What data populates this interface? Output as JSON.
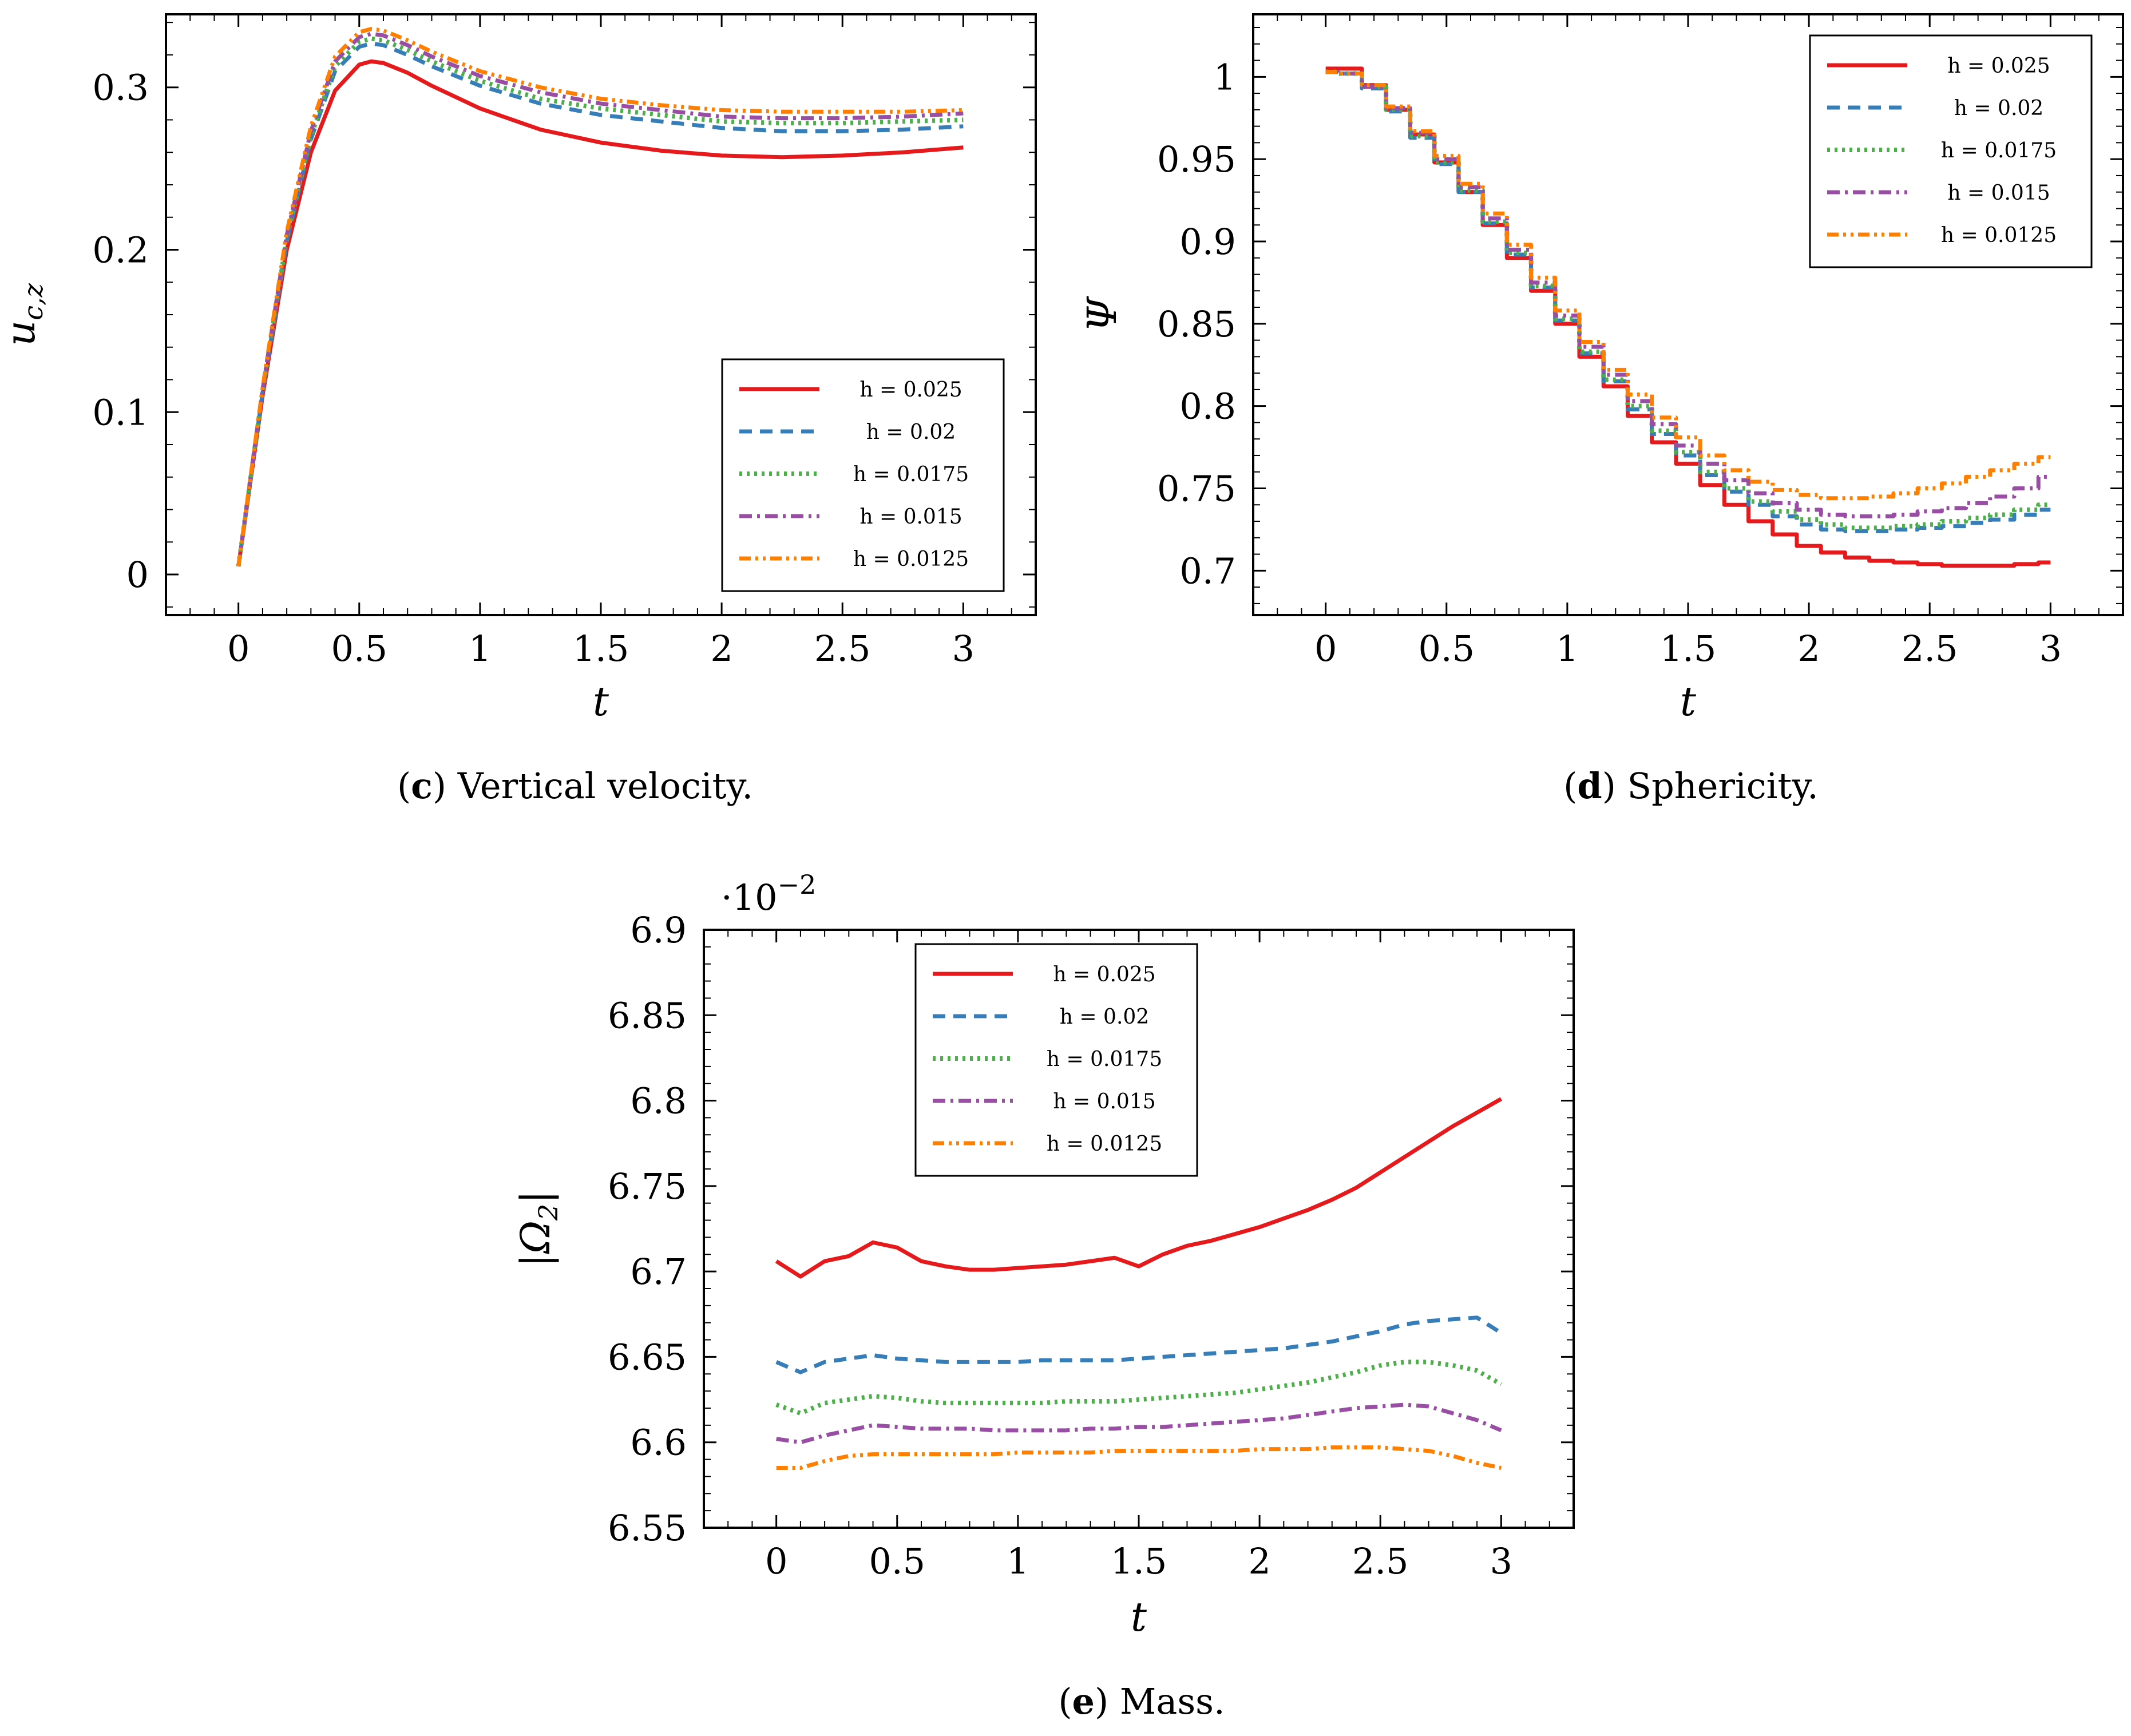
{
  "colors": {
    "h0025": "#e41a1c",
    "h002": "#377eb8",
    "h00175": "#4daf4a",
    "h0015": "#984ea3",
    "h00125": "#ff7f00"
  },
  "series_styles": [
    {
      "key": "h0025",
      "dash": "",
      "width": 7
    },
    {
      "key": "h002",
      "dash": "22 14",
      "width": 7
    },
    {
      "key": "h00175",
      "dash": "5 8",
      "width": 8
    },
    {
      "key": "h0015",
      "dash": "22 9 5 9",
      "width": 7
    },
    {
      "key": "h00125",
      "dash": "20 8 5 8 5 8",
      "width": 7
    }
  ],
  "legend_labels": [
    "h = 0.025",
    "h = 0.02",
    "h = 0.0175",
    "h = 0.015",
    "h = 0.0125"
  ],
  "chart_data": [
    {
      "id": "c",
      "type": "line",
      "title": "",
      "caption_letter": "c",
      "caption_text": "Vertical velocity.",
      "xlabel": "t",
      "ylabel": "u_{c,z}",
      "ylabel_main": "u",
      "ylabel_sub": "c,z",
      "xlim": [
        -0.3,
        3.3
      ],
      "ylim": [
        -0.025,
        0.345
      ],
      "xticks": [
        0,
        0.5,
        1,
        1.5,
        2,
        2.5,
        3
      ],
      "xtick_labels": [
        "0",
        "0.5",
        "1",
        "1.5",
        "2",
        "2.5",
        "3"
      ],
      "yticks": [
        0,
        0.1,
        0.2,
        0.3
      ],
      "ytick_labels": [
        "0",
        "0.1",
        "0.2",
        "0.3"
      ],
      "multiplier": "",
      "legend_position": "lower-right",
      "x": [
        0,
        0.1,
        0.2,
        0.3,
        0.4,
        0.5,
        0.55,
        0.6,
        0.7,
        0.8,
        1.0,
        1.25,
        1.5,
        1.75,
        2.0,
        2.25,
        2.5,
        2.75,
        3.0
      ],
      "series": [
        {
          "name": "h = 0.025",
          "values": [
            0.005,
            0.11,
            0.2,
            0.26,
            0.298,
            0.314,
            0.316,
            0.315,
            0.309,
            0.301,
            0.287,
            0.274,
            0.266,
            0.261,
            0.258,
            0.257,
            0.258,
            0.26,
            0.263
          ]
        },
        {
          "name": "h = 0.02",
          "values": [
            0.005,
            0.112,
            0.205,
            0.268,
            0.31,
            0.325,
            0.327,
            0.326,
            0.32,
            0.313,
            0.301,
            0.29,
            0.283,
            0.279,
            0.275,
            0.273,
            0.273,
            0.274,
            0.276
          ]
        },
        {
          "name": "h = 0.0175",
          "values": [
            0.005,
            0.113,
            0.207,
            0.27,
            0.313,
            0.328,
            0.33,
            0.329,
            0.323,
            0.316,
            0.304,
            0.293,
            0.287,
            0.283,
            0.279,
            0.278,
            0.278,
            0.279,
            0.28
          ]
        },
        {
          "name": "h = 0.015",
          "values": [
            0.005,
            0.114,
            0.209,
            0.273,
            0.316,
            0.331,
            0.333,
            0.332,
            0.326,
            0.319,
            0.307,
            0.297,
            0.29,
            0.286,
            0.282,
            0.281,
            0.281,
            0.282,
            0.284
          ]
        },
        {
          "name": "h = 0.0125",
          "values": [
            0.005,
            0.115,
            0.211,
            0.276,
            0.319,
            0.334,
            0.336,
            0.335,
            0.329,
            0.322,
            0.31,
            0.3,
            0.293,
            0.289,
            0.286,
            0.285,
            0.285,
            0.285,
            0.286
          ]
        }
      ]
    },
    {
      "id": "d",
      "type": "line",
      "title": "",
      "caption_letter": "d",
      "caption_text": "Sphericity.",
      "xlabel": "t",
      "ylabel": "Ψ",
      "ylabel_main": "Ψ",
      "ylabel_sub": "",
      "xlim": [
        -0.3,
        3.3
      ],
      "ylim": [
        0.673,
        1.038
      ],
      "xticks": [
        0,
        0.5,
        1,
        1.5,
        2,
        2.5,
        3
      ],
      "xtick_labels": [
        "0",
        "0.5",
        "1",
        "1.5",
        "2",
        "2.5",
        "3"
      ],
      "yticks": [
        0.7,
        0.75,
        0.8,
        0.85,
        0.9,
        0.95,
        1
      ],
      "ytick_labels": [
        "0.7",
        "0.75",
        "0.8",
        "0.85",
        "0.9",
        "0.95",
        "1"
      ],
      "multiplier": "",
      "legend_position": "top-right",
      "step": true,
      "x": [
        0,
        0.1,
        0.2,
        0.3,
        0.4,
        0.5,
        0.6,
        0.7,
        0.8,
        0.9,
        1.0,
        1.1,
        1.2,
        1.3,
        1.4,
        1.5,
        1.6,
        1.7,
        1.8,
        1.9,
        2.0,
        2.1,
        2.2,
        2.3,
        2.4,
        2.5,
        2.6,
        2.7,
        2.8,
        2.9,
        3.0
      ],
      "series": [
        {
          "name": "h = 0.025",
          "values": [
            1.005,
            1.005,
            0.995,
            0.98,
            0.965,
            0.948,
            0.93,
            0.91,
            0.89,
            0.87,
            0.85,
            0.83,
            0.812,
            0.794,
            0.778,
            0.765,
            0.752,
            0.74,
            0.73,
            0.722,
            0.715,
            0.711,
            0.708,
            0.706,
            0.705,
            0.704,
            0.703,
            0.703,
            0.703,
            0.704,
            0.705
          ]
        },
        {
          "name": "h = 0.02",
          "values": [
            1.003,
            1.002,
            0.993,
            0.979,
            0.963,
            0.947,
            0.93,
            0.911,
            0.892,
            0.872,
            0.852,
            0.832,
            0.815,
            0.798,
            0.783,
            0.77,
            0.758,
            0.748,
            0.74,
            0.733,
            0.728,
            0.725,
            0.724,
            0.724,
            0.725,
            0.726,
            0.727,
            0.729,
            0.731,
            0.734,
            0.737
          ]
        },
        {
          "name": "h = 0.0175",
          "values": [
            1.003,
            1.002,
            0.994,
            0.98,
            0.964,
            0.948,
            0.931,
            0.912,
            0.893,
            0.873,
            0.853,
            0.833,
            0.816,
            0.8,
            0.785,
            0.772,
            0.76,
            0.75,
            0.742,
            0.736,
            0.731,
            0.728,
            0.726,
            0.726,
            0.727,
            0.728,
            0.73,
            0.732,
            0.734,
            0.737,
            0.74
          ]
        },
        {
          "name": "h = 0.015",
          "values": [
            1.003,
            1.002,
            0.994,
            0.981,
            0.966,
            0.95,
            0.933,
            0.914,
            0.895,
            0.875,
            0.855,
            0.836,
            0.819,
            0.803,
            0.789,
            0.776,
            0.765,
            0.755,
            0.747,
            0.741,
            0.737,
            0.734,
            0.733,
            0.733,
            0.734,
            0.736,
            0.738,
            0.741,
            0.745,
            0.75,
            0.757
          ]
        },
        {
          "name": "h = 0.0125",
          "values": [
            1.003,
            1.002,
            0.995,
            0.982,
            0.967,
            0.952,
            0.935,
            0.917,
            0.898,
            0.878,
            0.858,
            0.839,
            0.822,
            0.807,
            0.793,
            0.781,
            0.77,
            0.761,
            0.754,
            0.749,
            0.746,
            0.744,
            0.744,
            0.745,
            0.747,
            0.75,
            0.753,
            0.757,
            0.761,
            0.765,
            0.769
          ]
        }
      ]
    },
    {
      "id": "e",
      "type": "line",
      "title": "",
      "caption_letter": "e",
      "caption_text": "Mass.",
      "xlabel": "t",
      "ylabel": "|Ω_2|",
      "ylabel_main": "|Ω",
      "ylabel_sub": "2",
      "ylabel_tail": "|",
      "xlim": [
        -0.3,
        3.3
      ],
      "ylim": [
        6.55,
        6.9
      ],
      "xticks": [
        0,
        0.5,
        1,
        1.5,
        2,
        2.5,
        3
      ],
      "xtick_labels": [
        "0",
        "0.5",
        "1",
        "1.5",
        "2",
        "2.5",
        "3"
      ],
      "yticks": [
        6.55,
        6.6,
        6.65,
        6.7,
        6.75,
        6.8,
        6.85,
        6.9
      ],
      "ytick_labels": [
        "6.55",
        "6.6",
        "6.65",
        "6.7",
        "6.75",
        "6.8",
        "6.85",
        "6.9"
      ],
      "multiplier": "·10",
      "multiplier_exp": "−2",
      "legend_position": "top-center",
      "x": [
        0,
        0.1,
        0.2,
        0.3,
        0.4,
        0.5,
        0.6,
        0.7,
        0.8,
        0.9,
        1.0,
        1.1,
        1.2,
        1.3,
        1.4,
        1.5,
        1.6,
        1.7,
        1.8,
        1.9,
        2.0,
        2.1,
        2.2,
        2.3,
        2.4,
        2.5,
        2.6,
        2.7,
        2.8,
        2.9,
        3.0
      ],
      "series": [
        {
          "name": "h = 0.025",
          "values": [
            6.706,
            6.697,
            6.706,
            6.709,
            6.717,
            6.714,
            6.706,
            6.703,
            6.701,
            6.701,
            6.702,
            6.703,
            6.704,
            6.706,
            6.708,
            6.703,
            6.71,
            6.715,
            6.718,
            6.722,
            6.726,
            6.731,
            6.736,
            6.742,
            6.749,
            6.758,
            6.767,
            6.776,
            6.785,
            6.793,
            6.801
          ]
        },
        {
          "name": "h = 0.02",
          "values": [
            6.647,
            6.641,
            6.647,
            6.649,
            6.651,
            6.649,
            6.648,
            6.647,
            6.647,
            6.647,
            6.647,
            6.648,
            6.648,
            6.648,
            6.648,
            6.649,
            6.65,
            6.651,
            6.652,
            6.653,
            6.654,
            6.655,
            6.657,
            6.659,
            6.662,
            6.665,
            6.669,
            6.671,
            6.672,
            6.673,
            6.664
          ]
        },
        {
          "name": "h = 0.0175",
          "values": [
            6.622,
            6.617,
            6.623,
            6.625,
            6.627,
            6.626,
            6.624,
            6.623,
            6.623,
            6.623,
            6.623,
            6.623,
            6.624,
            6.624,
            6.624,
            6.625,
            6.626,
            6.627,
            6.628,
            6.629,
            6.631,
            6.633,
            6.635,
            6.638,
            6.641,
            6.645,
            6.647,
            6.647,
            6.645,
            6.642,
            6.634
          ]
        },
        {
          "name": "h = 0.015",
          "values": [
            6.602,
            6.6,
            6.604,
            6.607,
            6.61,
            6.609,
            6.608,
            6.608,
            6.608,
            6.607,
            6.607,
            6.607,
            6.607,
            6.608,
            6.608,
            6.609,
            6.609,
            6.61,
            6.611,
            6.612,
            6.613,
            6.614,
            6.616,
            6.618,
            6.62,
            6.621,
            6.622,
            6.621,
            6.617,
            6.613,
            6.607
          ]
        },
        {
          "name": "h = 0.0125",
          "values": [
            6.585,
            6.585,
            6.589,
            6.592,
            6.593,
            6.593,
            6.593,
            6.593,
            6.593,
            6.593,
            6.594,
            6.594,
            6.594,
            6.594,
            6.595,
            6.595,
            6.595,
            6.595,
            6.595,
            6.595,
            6.596,
            6.596,
            6.596,
            6.597,
            6.597,
            6.597,
            6.596,
            6.595,
            6.592,
            6.588,
            6.585
          ]
        }
      ]
    }
  ]
}
